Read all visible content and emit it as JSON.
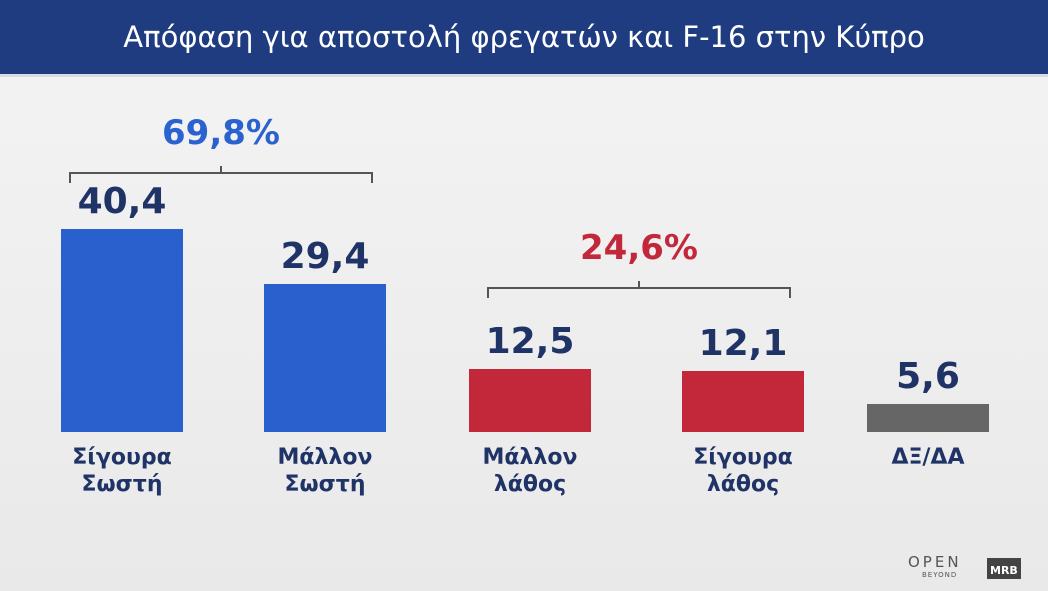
{
  "chart_data": {
    "type": "bar",
    "title": "Απόφαση για αποστολή φρεγατών και F-16 στην Κύπρο",
    "categories": [
      "Σίγουρα Σωστή",
      "Μάλλον Σωστή",
      "Μάλλον λάθος",
      "Σίγουρα λάθος",
      "ΔΞ/ΔΑ"
    ],
    "values": [
      40.4,
      29.4,
      12.5,
      12.1,
      5.6
    ],
    "value_labels": [
      "40,4",
      "29,4",
      "12,5",
      "12,1",
      "5,6"
    ],
    "colors": [
      "#2a5fce",
      "#2a5fce",
      "#c2283a",
      "#c2283a",
      "#666666"
    ],
    "annotations": [
      {
        "text": "69,8%",
        "color": "#2a62cf"
      },
      {
        "text": "24,6%",
        "color": "#c2283a"
      }
    ]
  },
  "logos": [
    "OPEN",
    "BEYOND",
    "MRB"
  ]
}
